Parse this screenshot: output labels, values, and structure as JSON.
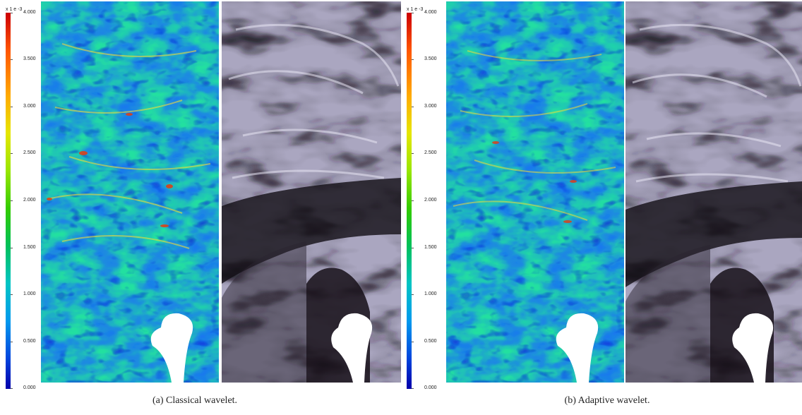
{
  "colorbar": {
    "unit": "x 1 e -3",
    "ticks": [
      "4.000",
      "3.500",
      "3.000",
      "2.500",
      "2.000",
      "1.500",
      "1.000",
      "0.500",
      "0.000"
    ]
  },
  "panels": [
    {
      "caption": "(a)  Classical wavelet."
    },
    {
      "caption": "(b)  Adaptive wavelet."
    }
  ]
}
